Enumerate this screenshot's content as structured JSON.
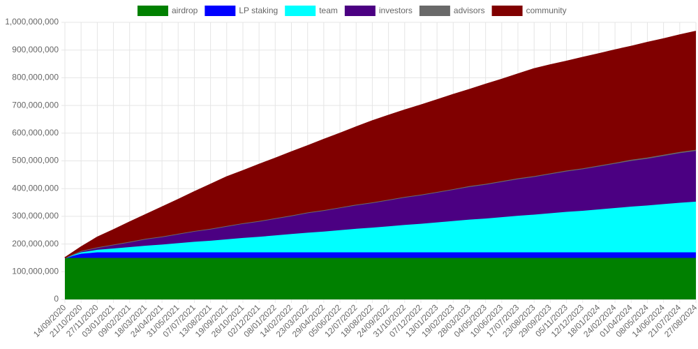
{
  "chart_data": {
    "type": "stacked_area",
    "categories": [
      "14/09/2020",
      "21/10/2020",
      "27/11/2020",
      "03/01/2021",
      "09/02/2021",
      "18/03/2021",
      "24/04/2021",
      "31/05/2021",
      "07/07/2021",
      "13/08/2021",
      "19/09/2021",
      "26/10/2021",
      "02/12/2021",
      "08/01/2022",
      "14/02/2022",
      "23/03/2022",
      "29/04/2022",
      "05/06/2022",
      "12/07/2022",
      "18/08/2022",
      "24/09/2022",
      "31/10/2022",
      "07/12/2022",
      "13/01/2023",
      "19/02/2023",
      "28/03/2023",
      "04/05/2023",
      "10/06/2023",
      "17/07/2023",
      "23/08/2023",
      "29/09/2023",
      "05/11/2023",
      "12/12/2023",
      "18/01/2024",
      "24/02/2024",
      "01/04/2024",
      "08/05/2024",
      "14/06/2024",
      "21/07/2024",
      "27/08/2024"
    ],
    "series": [
      {
        "name": "airdrop",
        "color": "#008000",
        "values": [
          150000000,
          150000000,
          150000000,
          150000000,
          150000000,
          150000000,
          150000000,
          150000000,
          150000000,
          150000000,
          150000000,
          150000000,
          150000000,
          150000000,
          150000000,
          150000000,
          150000000,
          150000000,
          150000000,
          150000000,
          150000000,
          150000000,
          150000000,
          150000000,
          150000000,
          150000000,
          150000000,
          150000000,
          150000000,
          150000000,
          150000000,
          150000000,
          150000000,
          150000000,
          150000000,
          150000000,
          150000000,
          150000000,
          150000000,
          150000000
        ]
      },
      {
        "name": "LP staking",
        "color": "#0000ff",
        "values": [
          0,
          15000000,
          20000000,
          20000000,
          20000000,
          20000000,
          20000000,
          20000000,
          20000000,
          20000000,
          20000000,
          20000000,
          20000000,
          20000000,
          20000000,
          20000000,
          20000000,
          20000000,
          20000000,
          20000000,
          20000000,
          20000000,
          20000000,
          20000000,
          20000000,
          20000000,
          20000000,
          20000000,
          20000000,
          20000000,
          20000000,
          20000000,
          20000000,
          20000000,
          20000000,
          20000000,
          20000000,
          20000000,
          20000000,
          20000000
        ]
      },
      {
        "name": "team",
        "color": "#00ffff",
        "values": [
          0,
          5000000,
          9000000,
          14000000,
          19000000,
          24000000,
          28000000,
          33000000,
          38000000,
          42000000,
          47000000,
          52000000,
          56000000,
          61000000,
          66000000,
          71000000,
          75000000,
          80000000,
          85000000,
          89000000,
          94000000,
          99000000,
          103000000,
          108000000,
          113000000,
          118000000,
          122000000,
          127000000,
          132000000,
          136000000,
          141000000,
          146000000,
          150000000,
          155000000,
          160000000,
          165000000,
          169000000,
          174000000,
          179000000,
          183000000
        ]
      },
      {
        "name": "investors",
        "color": "#4b0082",
        "values": [
          0,
          5000000,
          9000000,
          14000000,
          19000000,
          24000000,
          28000000,
          33000000,
          38000000,
          42000000,
          47000000,
          52000000,
          56000000,
          61000000,
          66000000,
          71000000,
          75000000,
          80000000,
          85000000,
          89000000,
          94000000,
          99000000,
          103000000,
          108000000,
          113000000,
          118000000,
          122000000,
          127000000,
          132000000,
          136000000,
          141000000,
          146000000,
          150000000,
          155000000,
          160000000,
          165000000,
          169000000,
          174000000,
          179000000,
          183000000
        ]
      },
      {
        "name": "advisors",
        "color": "#696969",
        "values": [
          0,
          0,
          0,
          0,
          0,
          1000000,
          1000000,
          1000000,
          1000000,
          1000000,
          1000000,
          1000000,
          1000000,
          1000000,
          1000000,
          2000000,
          2000000,
          2000000,
          2000000,
          2000000,
          2000000,
          2000000,
          2000000,
          2000000,
          2000000,
          3000000,
          3000000,
          3000000,
          3000000,
          3000000,
          3000000,
          3000000,
          3000000,
          3000000,
          3000000,
          4000000,
          4000000,
          4000000,
          4000000,
          4000000
        ]
      },
      {
        "name": "community",
        "color": "#800000",
        "values": [
          0,
          14000000,
          36000000,
          53000000,
          71000000,
          87000000,
          106000000,
          123000000,
          141000000,
          160000000,
          177000000,
          189000000,
          204000000,
          216000000,
          229000000,
          240000000,
          255000000,
          267000000,
          280000000,
          294000000,
          304000000,
          313000000,
          323000000,
          332000000,
          341000000,
          348000000,
          359000000,
          367000000,
          376000000,
          387000000,
          391000000,
          394000000,
          400000000,
          403000000,
          407000000,
          409000000,
          415000000,
          418000000,
          422000000,
          427000000
        ]
      }
    ],
    "ylim": [
      0,
      1000000000
    ],
    "yticks": [
      0,
      {
        "value": 100000000,
        "label": "100,000,000"
      },
      {
        "value": 200000000,
        "label": "200,000,000"
      },
      {
        "value": 300000000,
        "label": "300,000,000"
      },
      {
        "value": 400000000,
        "label": "400,000,000"
      },
      {
        "value": 500000000,
        "label": "500,000,000"
      },
      {
        "value": 600000000,
        "label": "600,000,000"
      },
      {
        "value": 700000000,
        "label": "700,000,000"
      },
      {
        "value": 800000000,
        "label": "800,000,000"
      },
      {
        "value": 900000000,
        "label": "900,000,000"
      },
      {
        "value": 1000000000,
        "label": "1,000,000,000"
      }
    ],
    "grid": true,
    "legend": "top"
  }
}
